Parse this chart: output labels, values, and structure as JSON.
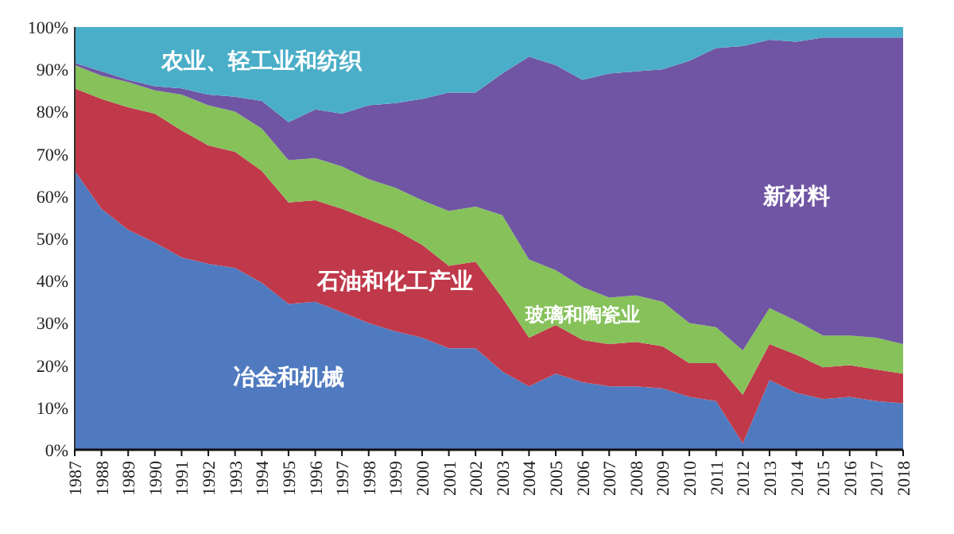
{
  "chart_data": {
    "type": "area",
    "stacked": true,
    "categories": [
      "1987",
      "1988",
      "1989",
      "1990",
      "1991",
      "1992",
      "1993",
      "1994",
      "1995",
      "1996",
      "1997",
      "1998",
      "1999",
      "2000",
      "2001",
      "2002",
      "2003",
      "2004",
      "2005",
      "2006",
      "2007",
      "2008",
      "2009",
      "2010",
      "2011",
      "2012",
      "2013",
      "2014",
      "2015",
      "2016",
      "2017",
      "2018"
    ],
    "ylim": [
      0,
      100
    ],
    "yticks": [
      {
        "value": 0,
        "label": "0%"
      },
      {
        "value": 10,
        "label": "10%"
      },
      {
        "value": 20,
        "label": "20%"
      },
      {
        "value": 30,
        "label": "30%"
      },
      {
        "value": 40,
        "label": "40%"
      },
      {
        "value": 50,
        "label": "50%"
      },
      {
        "value": 60,
        "label": "60%"
      },
      {
        "value": 70,
        "label": "70%"
      },
      {
        "value": 80,
        "label": "80%"
      },
      {
        "value": 90,
        "label": "90%"
      },
      {
        "value": 100,
        "label": "100%"
      }
    ],
    "grid": false,
    "series": [
      {
        "name": "冶金和机械",
        "color": "#4f7ac0",
        "values": [
          66,
          57,
          52,
          49,
          45.5,
          44,
          43,
          39.5,
          34.5,
          35,
          32.5,
          30,
          28,
          26.5,
          24,
          24,
          18.5,
          15,
          18,
          16,
          15,
          15,
          14.5,
          12.5,
          11.5,
          1.5,
          16.5,
          13.5,
          12,
          12.5,
          11.5,
          11
        ]
      },
      {
        "name": "石油和化工产业",
        "color": "#c0394a",
        "values": [
          19.5,
          26,
          29,
          30.5,
          30,
          28,
          27.5,
          26.5,
          24,
          24,
          24.5,
          24.5,
          24,
          22,
          19.5,
          20.5,
          17.5,
          11.5,
          11.5,
          10,
          10,
          10.5,
          10,
          8,
          9,
          11.5,
          8.5,
          9,
          7.5,
          7.5,
          7.5,
          7
        ]
      },
      {
        "name": "玻璃和陶瓷业",
        "color": "#86c15a",
        "values": [
          5.5,
          5.5,
          6,
          5.5,
          8.5,
          9.5,
          9.5,
          10,
          10,
          10,
          10,
          9.5,
          10,
          10.5,
          13,
          13,
          19.5,
          18.5,
          13,
          12.5,
          11,
          11,
          10.5,
          9.5,
          8.5,
          10.5,
          8.5,
          8,
          7.5,
          7,
          7.5,
          7
        ]
      },
      {
        "name": "新材料",
        "color": "#6f55a3",
        "values": [
          0.5,
          1,
          0.5,
          1,
          1.5,
          2.5,
          3.5,
          6.5,
          9,
          11.5,
          12.5,
          17.5,
          20,
          24,
          28,
          27,
          33.5,
          48,
          48.5,
          49,
          53,
          53,
          55,
          62,
          66,
          72,
          63.5,
          66,
          70.5,
          70.5,
          71,
          72.5
        ]
      },
      {
        "name": "农业、轻工业和纺织",
        "color": "#4aaec8",
        "values": [
          8.5,
          10.5,
          12.5,
          14,
          14.5,
          16,
          16.5,
          17.5,
          22.5,
          19.5,
          20.5,
          18.5,
          18,
          17,
          15.5,
          15.5,
          11,
          7,
          9,
          12.5,
          11,
          10.5,
          10,
          8,
          5,
          4.5,
          3,
          3.5,
          2.5,
          2.5,
          2.5,
          2.5
        ]
      }
    ]
  }
}
